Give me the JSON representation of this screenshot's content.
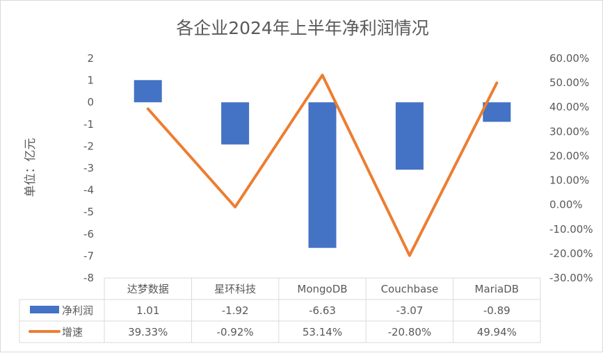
{
  "chart_data": {
    "type": "bar+line",
    "title": "各企业2024年上半年净利润情况",
    "ylabel": "单位：亿元",
    "categories": [
      "达梦数据",
      "星环科技",
      "MongoDB",
      "Couchbase",
      "MariaDB"
    ],
    "ylim": [
      -8,
      2
    ],
    "y_ticks": [
      2,
      1,
      0,
      -1,
      -2,
      -3,
      -4,
      -5,
      -6,
      -7,
      -8
    ],
    "y2lim": [
      -30,
      60
    ],
    "y2_ticks": [
      "60.00%",
      "50.00%",
      "40.00%",
      "30.00%",
      "20.00%",
      "10.00%",
      "0.00%",
      "-10.00%",
      "-20.00%",
      "-30.00%"
    ],
    "grid": false,
    "legend": "data-table",
    "series": [
      {
        "name": "净利润",
        "type": "bar",
        "axis": "left",
        "color": "#4472C4",
        "values": [
          1.01,
          -1.92,
          -6.63,
          -3.07,
          -0.89
        ],
        "labels": [
          "1.01",
          "-1.92",
          "-6.63",
          "-3.07",
          "-0.89"
        ]
      },
      {
        "name": "增速",
        "type": "line",
        "axis": "right",
        "color": "#ED7D31",
        "values": [
          39.33,
          -0.92,
          53.14,
          -20.8,
          49.94
        ],
        "labels": [
          "39.33%",
          "-0.92%",
          "53.14%",
          "-20.80%",
          "49.94%"
        ]
      }
    ]
  }
}
